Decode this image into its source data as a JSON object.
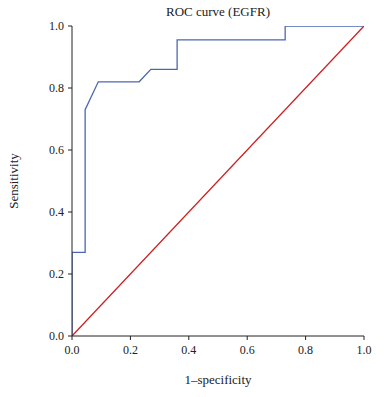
{
  "chart_data": {
    "type": "line",
    "title": "ROC curve (EGFR)",
    "x_label": "1–specificity",
    "y_label": "Sensitivity",
    "series": [
      {
        "color": "#4a68b0",
        "x": [
          0,
          0,
          0.045,
          0.045,
          0.09,
          0.23,
          0.27,
          0.36,
          0.36,
          0.73,
          0.73,
          1.0
        ],
        "values": [
          0,
          0.27,
          0.27,
          0.73,
          0.82,
          0.82,
          0.86,
          0.86,
          0.955,
          0.955,
          1.0,
          1.0
        ]
      },
      {
        "color": "#cc2020",
        "x": [
          0,
          1.0
        ],
        "values": [
          0,
          1.0
        ]
      }
    ],
    "xlim": [
      0,
      1.0
    ],
    "ylim": [
      0,
      1.0
    ],
    "xticks": [
      {
        "value": 0,
        "label": "0.0"
      },
      {
        "value": 0.2,
        "label": "0.2"
      },
      {
        "value": 0.4,
        "label": "0.4"
      },
      {
        "value": 0.6,
        "label": "0.6"
      },
      {
        "value": 0.8,
        "label": "0.8"
      },
      {
        "value": 1.0,
        "label": "1.0"
      }
    ],
    "yticks": [
      {
        "value": 0,
        "label": "0.0"
      },
      {
        "value": 0.2,
        "label": "0.2"
      },
      {
        "value": 0.4,
        "label": "0.4"
      },
      {
        "value": 0.6,
        "label": "0.6"
      },
      {
        "value": 0.8,
        "label": "0.8"
      },
      {
        "value": 1.0,
        "label": "1.0"
      }
    ],
    "grid": false
  }
}
